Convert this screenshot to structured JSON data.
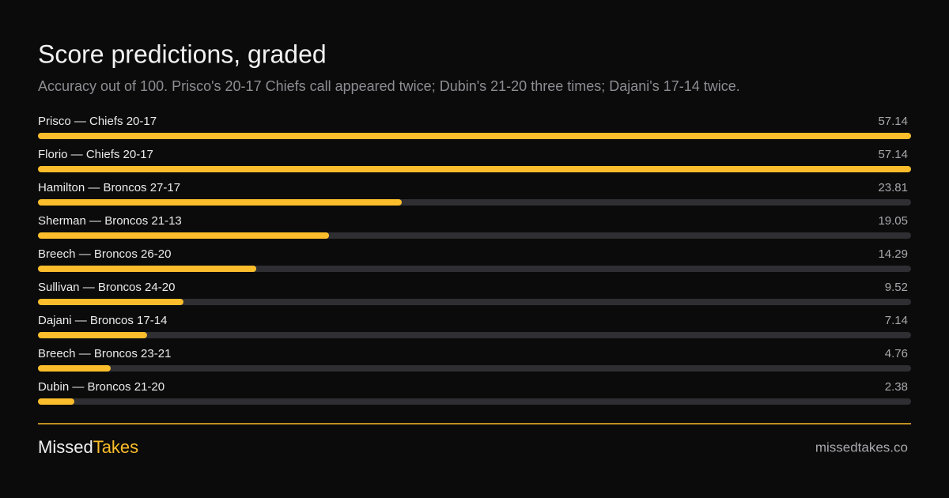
{
  "chart_data": {
    "type": "bar",
    "orientation": "horizontal",
    "title": "Score predictions, graded",
    "subtitle": "Accuracy out of 100. Prisco's 20-17 Chiefs call appeared twice; Dubin's 21-20 three times; Dajani's 17-14 twice.",
    "categories": [
      "Prisco — Chiefs 20-17",
      "Florio — Chiefs 20-17",
      "Hamilton — Broncos 27-17",
      "Sherman — Broncos 21-13",
      "Breech — Broncos 26-20",
      "Sullivan — Broncos 24-20",
      "Dajani — Broncos 17-14",
      "Breech — Broncos 23-21",
      "Dubin — Broncos 21-20"
    ],
    "values": [
      57.14,
      57.14,
      23.81,
      19.05,
      14.29,
      9.52,
      7.14,
      4.76,
      2.38
    ],
    "color": "#fbbd2b",
    "xlim": [
      0,
      57.14
    ]
  },
  "footer": {
    "brand_left": "Missed",
    "brand_right": "Takes",
    "url": "missedtakes.co"
  }
}
